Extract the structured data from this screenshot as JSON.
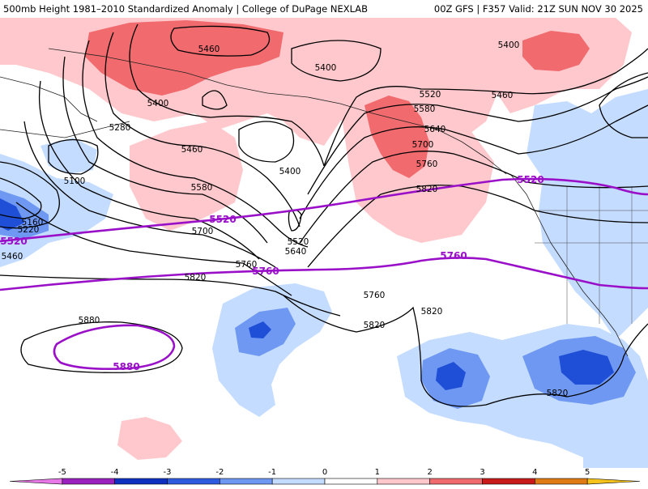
{
  "header": {
    "left_title": "500mb Height 1981–2010 Standardized Anomaly | College of DuPage NEXLAB",
    "right_title": "00Z GFS | F357 Valid: 21Z SUN NOV 30 2025"
  },
  "colors": {
    "anom_pos_1": "#ffc8cc",
    "anom_pos_2": "#f06a6e",
    "anom_neg_1": "#c4dcff",
    "anom_neg_2": "#6f98f2",
    "anom_neg_3": "#1f4fd6",
    "anom_neg_4": "#0a2fb0",
    "highlight_contour": "#9a10c8"
  },
  "contour_labels": {
    "l5460_top": "5460",
    "l5400_a": "5400",
    "l5400_b": "5400",
    "l5400_c": "5400",
    "l5400_d": "5400",
    "l5460_ne": "5460",
    "l5520_n": "5520",
    "l5580_n": "5580",
    "l5640_n": "5640",
    "l5700_n": "5700",
    "l5760_n": "5760",
    "l5820_n": "5820",
    "l5280": "5280",
    "l5100": "5100",
    "l5160": "5160",
    "l5220": "5220",
    "l5460_w": "5460",
    "l5460_mid": "5460",
    "l5580_mid": "5580",
    "l5700_mid": "5700",
    "l5760_mid": "5760",
    "l5820_mid": "5820",
    "l5520_low": "5520",
    "l5640_low": "5640",
    "l5760_low": "5760",
    "l5820_s": "5820",
    "l5820_se": "5820",
    "l5820_e": "5820",
    "l5880": "5880"
  },
  "highlight_labels": {
    "h5520_w": "5520",
    "h5520_mid": "5520",
    "h5520_e": "5520",
    "h5760_mid": "5760",
    "h5760_e": "5760",
    "h5880": "5880"
  },
  "colorbar": {
    "labels": [
      "-5",
      "-4",
      "-3",
      "-2",
      "-1",
      "0",
      "1",
      "2",
      "3",
      "4",
      "5"
    ],
    "colors": [
      "#e878e8",
      "#9b20c0",
      "#1030c0",
      "#2f5be0",
      "#6f98f2",
      "#c4dcff",
      "#ffffff",
      "#ffc8cc",
      "#f06a6e",
      "#c81a1a",
      "#e07a14",
      "#f6c21c"
    ]
  }
}
